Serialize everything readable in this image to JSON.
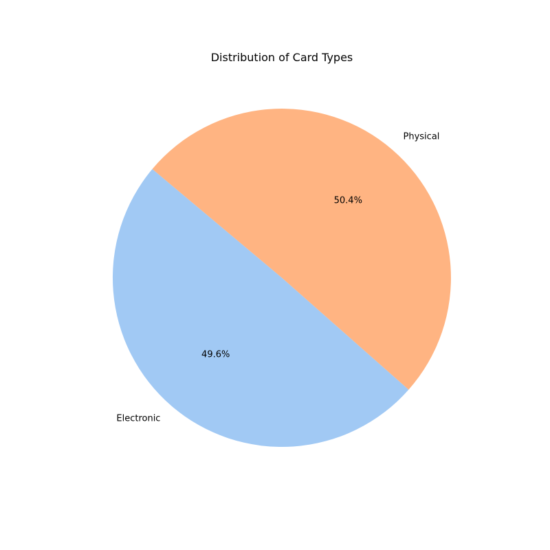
{
  "chart_data": {
    "type": "pie",
    "title": "Distribution of Card Types",
    "start_angle_deg": 140,
    "direction": "counterclockwise",
    "slices": [
      {
        "label": "Electronic",
        "value": 49.6,
        "pct_label": "49.6%",
        "color": "#a1c9f4"
      },
      {
        "label": "Physical",
        "value": 50.4,
        "pct_label": "50.4%",
        "color": "#ffb482"
      }
    ]
  }
}
